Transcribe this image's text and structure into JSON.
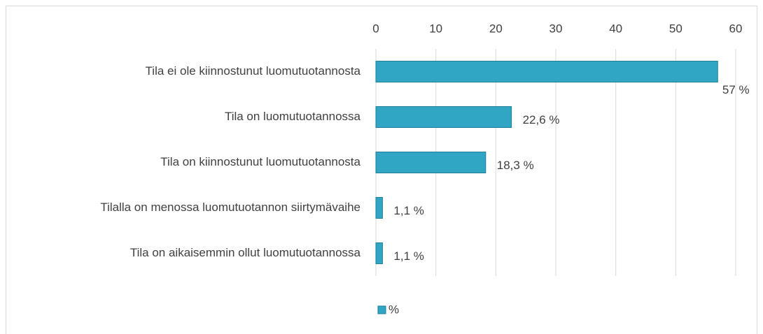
{
  "chart_data": {
    "type": "bar",
    "orientation": "horizontal",
    "categories": [
      "Tila ei ole kiinnostunut luomutuotannosta",
      "Tila on luomutuotannossa",
      "Tila on kiinnostunut luomutuotannosta",
      "Tilalla on menossa luomutuotannon siirtymävaihe",
      "Tila on aikaisemmin ollut luomutuotannossa"
    ],
    "series": [
      {
        "name": "%",
        "color": "#31a6c4",
        "values": [
          57,
          22.6,
          18.3,
          1.1,
          1.1
        ],
        "value_labels": [
          "57 %",
          "22,6 %",
          "18,3 %",
          "1,1 %",
          "1,1 %"
        ]
      }
    ],
    "xlim": [
      0,
      60
    ],
    "xticks": [
      0,
      10,
      20,
      30,
      40,
      50,
      60
    ],
    "grid": true,
    "legend": "bottom"
  }
}
